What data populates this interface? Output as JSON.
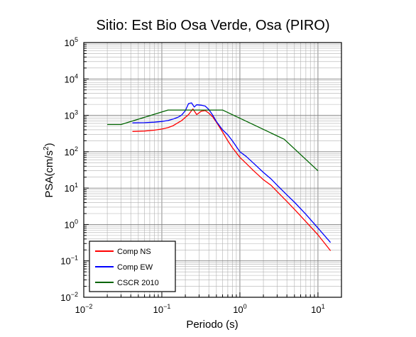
{
  "chart_data": {
    "type": "line",
    "title": "Sitio: Est Bio Osa Verde, Osa (PIRO)",
    "xlabel": "Periodo (s)",
    "ylabel": {
      "prefix": "PSA(cm/s",
      "exponent": "2",
      "suffix": ")"
    },
    "xscale": "log",
    "yscale": "log",
    "xlim": [
      0.01,
      20
    ],
    "ylim": [
      0.01,
      100000
    ],
    "grid": true,
    "legend_position": "bottom-left",
    "x_ticks": [
      {
        "base": "10",
        "exp": "−2",
        "value": 0.01
      },
      {
        "base": "10",
        "exp": "−1",
        "value": 0.1
      },
      {
        "base": "10",
        "exp": "0",
        "value": 1
      },
      {
        "base": "10",
        "exp": "1",
        "value": 10
      }
    ],
    "y_ticks": [
      {
        "base": "10",
        "exp": "−2",
        "value": 0.01
      },
      {
        "base": "10",
        "exp": "−1",
        "value": 0.1
      },
      {
        "base": "10",
        "exp": "0",
        "value": 1
      },
      {
        "base": "10",
        "exp": "1",
        "value": 10
      },
      {
        "base": "10",
        "exp": "2",
        "value": 100
      },
      {
        "base": "10",
        "exp": "3",
        "value": 1000
      },
      {
        "base": "10",
        "exp": "4",
        "value": 10000
      },
      {
        "base": "10",
        "exp": "5",
        "value": 100000
      }
    ],
    "series": [
      {
        "name": "Comp NS",
        "color": "#ff0000",
        "x": [
          0.042,
          0.06,
          0.08,
          0.1,
          0.12,
          0.14,
          0.16,
          0.18,
          0.2,
          0.22,
          0.25,
          0.28,
          0.32,
          0.36,
          0.4,
          0.45,
          0.5,
          0.6,
          0.7,
          0.8,
          1.0,
          1.2,
          1.5,
          2.0,
          2.5,
          3.0,
          4.0,
          5.0,
          7.0,
          10.0,
          14.5
        ],
        "y": [
          360,
          370,
          390,
          420,
          460,
          520,
          620,
          720,
          880,
          1050,
          1500,
          1050,
          1300,
          1350,
          1150,
          900,
          650,
          350,
          200,
          130,
          70,
          48,
          30,
          17,
          12,
          8,
          4.3,
          2.6,
          1.2,
          0.52,
          0.19
        ]
      },
      {
        "name": "Comp EW",
        "color": "#0000ff",
        "x": [
          0.042,
          0.06,
          0.08,
          0.1,
          0.12,
          0.14,
          0.16,
          0.18,
          0.2,
          0.22,
          0.24,
          0.26,
          0.28,
          0.32,
          0.36,
          0.4,
          0.45,
          0.5,
          0.6,
          0.7,
          0.8,
          1.0,
          1.2,
          1.5,
          2.0,
          2.5,
          3.0,
          4.0,
          5.0,
          7.0,
          10.0,
          14.5
        ],
        "y": [
          620,
          630,
          650,
          680,
          720,
          790,
          880,
          1020,
          1350,
          2100,
          2200,
          1700,
          1950,
          1900,
          1800,
          1450,
          1000,
          680,
          400,
          290,
          200,
          100,
          75,
          48,
          27,
          18,
          12,
          6.5,
          4.1,
          1.9,
          0.8,
          0.32
        ]
      },
      {
        "name": "CSCR 2010",
        "color": "#006400",
        "x": [
          0.02,
          0.03,
          0.12,
          0.6,
          3.7,
          10.0
        ],
        "y": [
          560,
          560,
          1400,
          1400,
          220,
          30
        ]
      }
    ]
  }
}
